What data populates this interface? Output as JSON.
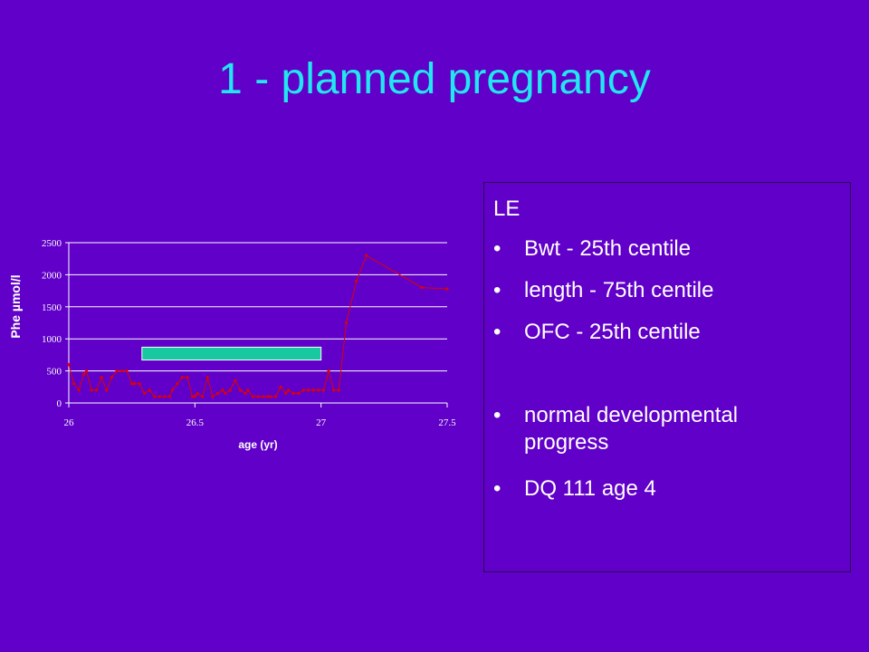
{
  "slide": {
    "title": "1 - planned pregnancy"
  },
  "info_box": {
    "header": "LE",
    "bullets": [
      "Bwt - 25th centile",
      "length - 75th centile",
      "OFC - 25th centile",
      "normal developmental progress",
      "DQ 111 age 4"
    ]
  },
  "chart_data": {
    "type": "line",
    "title": "",
    "xlabel": "age (yr)",
    "ylabel": "Phe µmol/l",
    "xlim": [
      26,
      27.5
    ],
    "ylim": [
      0,
      2500
    ],
    "xticks": [
      "26",
      "26.5",
      "27",
      "27.5"
    ],
    "yticks": [
      "0",
      "500",
      "1000",
      "1500",
      "2000",
      "2500"
    ],
    "grid": "horizontal",
    "legend": "none",
    "line_color": "#e00000",
    "target_band": {
      "x_start": 26.29,
      "x_end": 27.0,
      "y_low": 670,
      "y_high": 870,
      "color": "#18c8a0"
    },
    "series": [
      {
        "x": [
          26.0,
          26.02,
          26.04,
          26.06,
          26.07,
          26.09,
          26.11,
          26.13,
          26.15,
          26.17,
          26.19,
          26.21,
          26.23,
          26.25,
          26.26,
          26.28,
          26.3,
          26.32,
          26.34,
          26.36,
          26.38,
          26.4,
          26.41,
          26.43,
          26.45,
          26.47,
          26.49,
          26.5,
          26.51,
          26.53,
          26.55,
          26.57,
          26.59,
          26.61,
          26.62,
          26.64,
          26.66,
          26.68,
          26.7,
          26.71,
          26.73,
          26.75,
          26.77,
          26.79,
          26.8,
          26.82,
          26.84,
          26.86,
          26.87,
          26.89,
          26.91,
          26.93,
          26.95,
          26.97,
          26.99,
          27.01,
          27.03,
          27.05,
          27.07,
          27.1,
          27.14,
          27.18,
          27.4,
          27.5
        ],
        "y": [
          600,
          300,
          200,
          450,
          500,
          200,
          200,
          400,
          200,
          400,
          500,
          500,
          500,
          300,
          300,
          300,
          150,
          200,
          100,
          100,
          100,
          100,
          200,
          300,
          400,
          400,
          100,
          100,
          150,
          100,
          400,
          100,
          150,
          200,
          150,
          200,
          350,
          200,
          150,
          200,
          100,
          100,
          100,
          100,
          100,
          100,
          250,
          150,
          200,
          150,
          150,
          200,
          200,
          200,
          200,
          200,
          500,
          200,
          200,
          1250,
          1900,
          2300,
          1800,
          1780
        ]
      }
    ]
  }
}
